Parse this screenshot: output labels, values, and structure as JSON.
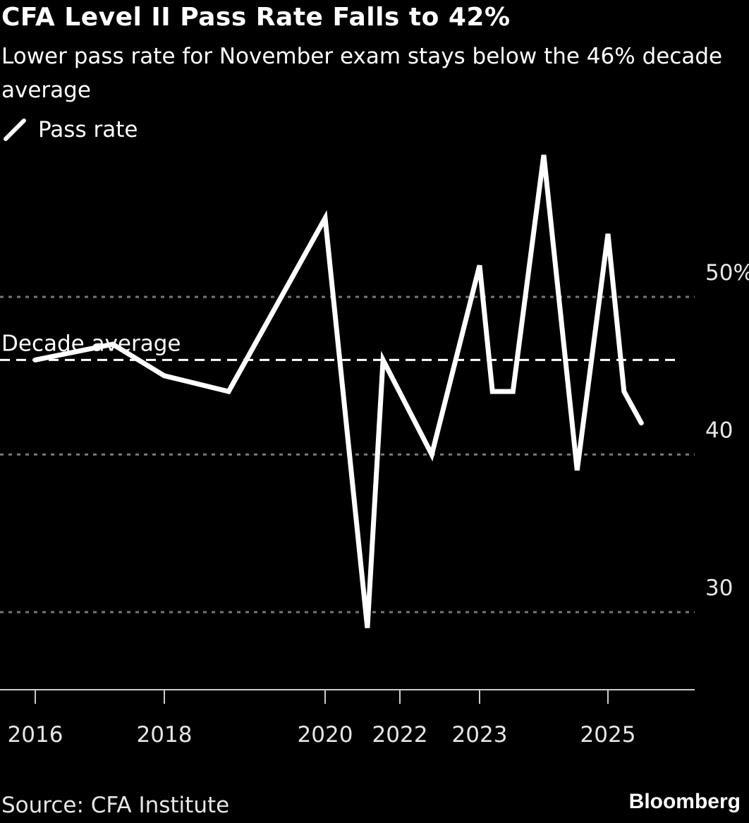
{
  "chart_data": {
    "type": "line",
    "title": "CFA Level II Pass Rate Falls to 42%",
    "subtitle": "Lower pass rate for November exam stays below the 46% decade average",
    "legend": [
      {
        "name": "Pass rate",
        "color": "#ffffff"
      }
    ],
    "legend_placement": "top-left",
    "x_ticks": [
      2016,
      2018,
      2020,
      2022,
      2023,
      2025
    ],
    "x_tick_labels": [
      "2016",
      "2018",
      "2020",
      "2022",
      "2023",
      "2025"
    ],
    "y_ticks": [
      30,
      40,
      50
    ],
    "y_tick_labels": [
      "30",
      "40",
      "50%"
    ],
    "ylim": [
      25,
      60
    ],
    "grid": true,
    "series": [
      {
        "name": "Pass rate",
        "x": [
          2016.0,
          2017.2,
          2018.0,
          2018.8,
          2020.0,
          2021.13,
          2021.55,
          2022.4,
          2023.0,
          2023.2,
          2023.52,
          2024.0,
          2024.52,
          2025.0,
          2025.25,
          2025.52
        ],
        "values": [
          46,
          47,
          45,
          44,
          55,
          29,
          46,
          40,
          52,
          44,
          44,
          59,
          39,
          54,
          44,
          42
        ]
      }
    ],
    "reference_line": {
      "label": "Decade average",
      "value": 46
    },
    "source": "Source: CFA Institute",
    "brand": "Bloomberg"
  }
}
